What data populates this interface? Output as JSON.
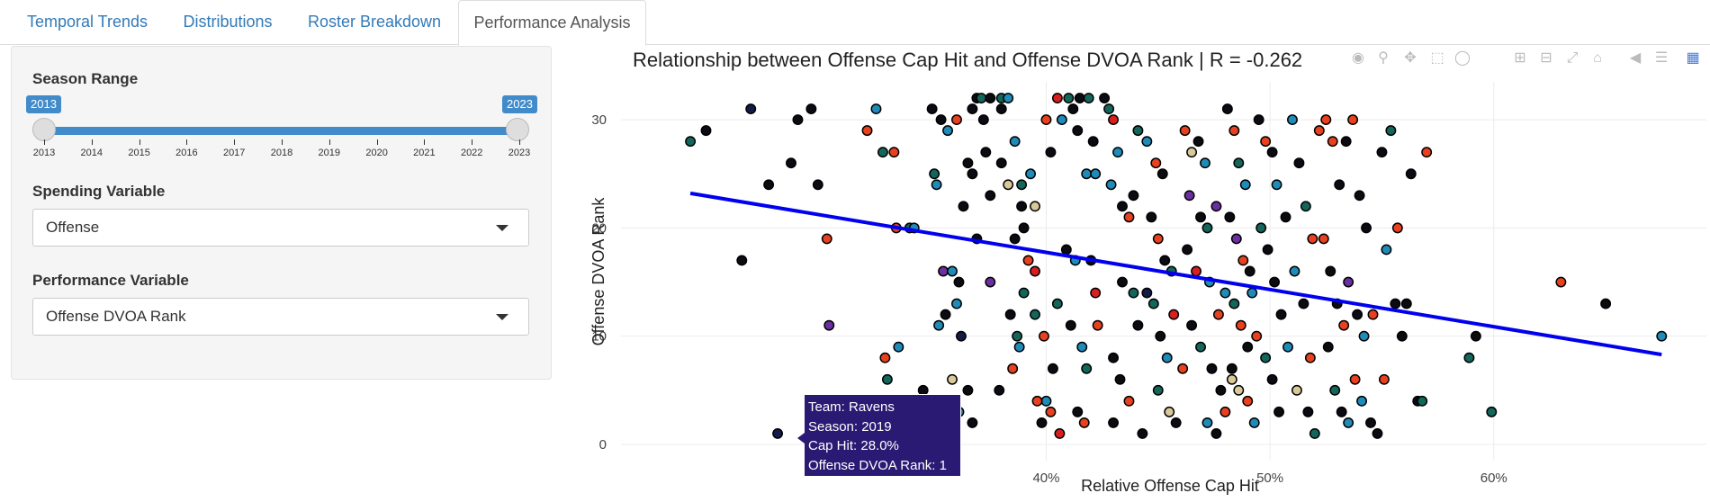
{
  "tabs": [
    {
      "label": "Temporal Trends",
      "active": false
    },
    {
      "label": "Distributions",
      "active": false
    },
    {
      "label": "Roster Breakdown",
      "active": false
    },
    {
      "label": "Performance Analysis",
      "active": true
    }
  ],
  "sidebar": {
    "season_range": {
      "label": "Season Range",
      "min_value": "2013",
      "max_value": "2023",
      "ticks": [
        "2013",
        "2014",
        "2015",
        "2016",
        "2017",
        "2018",
        "2019",
        "2020",
        "2021",
        "2022",
        "2023"
      ]
    },
    "spending": {
      "label": "Spending Variable",
      "value": "Offense"
    },
    "performance": {
      "label": "Performance Variable",
      "value": "Offense DVOA Rank"
    }
  },
  "modebar_icons": [
    "camera-icon",
    "zoom-icon",
    "pan-icon",
    "box-select-icon",
    "lasso-select-icon",
    "zoom-in-icon",
    "zoom-out-icon",
    "autoscale-icon",
    "reset-axes-icon",
    "spike-lines-icon",
    "compare-hover-icon",
    "plotly-logo-icon"
  ],
  "tooltip": {
    "team": "Team: Ravens",
    "season": "Season: 2019",
    "cap_hit": "Cap Hit: 28.0%",
    "rank": "Offense DVOA Rank: 1"
  },
  "colors": {
    "accent": "#428bca",
    "regression": "#0000ee",
    "point_palette": [
      "#0b0b12",
      "#1f8bb8",
      "#e8411f",
      "#13665a",
      "#6b2fa0",
      "#d9c89a",
      "#d62020",
      "#141b46"
    ]
  },
  "chart_data": {
    "type": "scatter",
    "title": "Relationship between Offense Cap Hit and Offense DVOA Rank | R = -0.262",
    "xlabel": "Relative Offense Cap Hit",
    "ylabel": "Offense DVOA Rank",
    "xlim": [
      21.0,
      69.5
    ],
    "ylim": [
      -1.5,
      33.5
    ],
    "x_ticks": [
      {
        "value": 40,
        "label": "40%"
      },
      {
        "value": 50,
        "label": "50%"
      },
      {
        "value": 60,
        "label": "60%"
      }
    ],
    "y_ticks": [
      0,
      10,
      20,
      30
    ],
    "grid": true,
    "regression_line": {
      "x": [
        24.1,
        67.5
      ],
      "y": [
        23.2,
        8.3
      ]
    },
    "points": [
      {
        "x": 24.1,
        "y": 28,
        "c": 3
      },
      {
        "x": 24.8,
        "y": 29,
        "c": 0
      },
      {
        "x": 26.4,
        "y": 17,
        "c": 0
      },
      {
        "x": 26.8,
        "y": 31,
        "c": 7
      },
      {
        "x": 27.6,
        "y": 24,
        "c": 0
      },
      {
        "x": 28.6,
        "y": 26,
        "c": 0
      },
      {
        "x": 28.9,
        "y": 30,
        "c": 0
      },
      {
        "x": 29.5,
        "y": 31,
        "c": 0
      },
      {
        "x": 29.8,
        "y": 24,
        "c": 0
      },
      {
        "x": 30.2,
        "y": 19,
        "c": 2
      },
      {
        "x": 30.3,
        "y": 11,
        "c": 4
      },
      {
        "x": 28.0,
        "y": 1,
        "c": 7
      },
      {
        "x": 32.0,
        "y": 29,
        "c": 2
      },
      {
        "x": 32.4,
        "y": 31,
        "c": 1
      },
      {
        "x": 32.7,
        "y": 27,
        "c": 3
      },
      {
        "x": 33.2,
        "y": 27,
        "c": 2
      },
      {
        "x": 32.8,
        "y": 8,
        "c": 2
      },
      {
        "x": 32.9,
        "y": 6,
        "c": 3
      },
      {
        "x": 33.4,
        "y": 9,
        "c": 1
      },
      {
        "x": 33.3,
        "y": 20,
        "c": 2
      },
      {
        "x": 33.9,
        "y": 20,
        "c": 3
      },
      {
        "x": 34.1,
        "y": 20,
        "c": 1
      },
      {
        "x": 34.0,
        "y": 4,
        "c": 2
      },
      {
        "x": 34.5,
        "y": 5,
        "c": 0
      },
      {
        "x": 34.9,
        "y": 31,
        "c": 0
      },
      {
        "x": 35.0,
        "y": 25,
        "c": 3
      },
      {
        "x": 35.3,
        "y": 30,
        "c": 0
      },
      {
        "x": 35.6,
        "y": 29,
        "c": 1
      },
      {
        "x": 36.0,
        "y": 30,
        "c": 2
      },
      {
        "x": 35.1,
        "y": 24,
        "c": 1
      },
      {
        "x": 35.4,
        "y": 16,
        "c": 4
      },
      {
        "x": 35.8,
        "y": 16,
        "c": 1
      },
      {
        "x": 36.5,
        "y": 26,
        "c": 0
      },
      {
        "x": 36.3,
        "y": 22,
        "c": 0
      },
      {
        "x": 36.7,
        "y": 25,
        "c": 0
      },
      {
        "x": 36.9,
        "y": 19,
        "c": 0
      },
      {
        "x": 35.5,
        "y": 12,
        "c": 0
      },
      {
        "x": 35.8,
        "y": 6,
        "c": 5
      },
      {
        "x": 36.0,
        "y": 13,
        "c": 1
      },
      {
        "x": 36.5,
        "y": 5,
        "c": 0
      },
      {
        "x": 35.2,
        "y": 11,
        "c": 1
      },
      {
        "x": 36.2,
        "y": 10,
        "c": 7
      },
      {
        "x": 36.1,
        "y": 3,
        "c": 1
      },
      {
        "x": 36.1,
        "y": 15,
        "c": 0
      },
      {
        "x": 36.7,
        "y": 31,
        "c": 0
      },
      {
        "x": 36.9,
        "y": 32,
        "c": 0
      },
      {
        "x": 37.2,
        "y": 30,
        "c": 0
      },
      {
        "x": 37.3,
        "y": 27,
        "c": 0
      },
      {
        "x": 37.5,
        "y": 23,
        "c": 0
      },
      {
        "x": 37.5,
        "y": 15,
        "c": 4
      },
      {
        "x": 37.9,
        "y": 5,
        "c": 0
      },
      {
        "x": 36.7,
        "y": 2,
        "c": 0
      },
      {
        "x": 38.0,
        "y": 31,
        "c": 0
      },
      {
        "x": 38.0,
        "y": 26,
        "c": 0
      },
      {
        "x": 38.3,
        "y": 24,
        "c": 5
      },
      {
        "x": 38.6,
        "y": 19,
        "c": 0
      },
      {
        "x": 38.9,
        "y": 22,
        "c": 0
      },
      {
        "x": 39.2,
        "y": 17,
        "c": 2
      },
      {
        "x": 39.5,
        "y": 12,
        "c": 3
      },
      {
        "x": 39.9,
        "y": 10,
        "c": 2
      },
      {
        "x": 40.5,
        "y": 13,
        "c": 3
      },
      {
        "x": 40.3,
        "y": 7,
        "c": 0
      },
      {
        "x": 40.0,
        "y": 4,
        "c": 1
      },
      {
        "x": 39.8,
        "y": 2,
        "c": 0
      },
      {
        "x": 37.1,
        "y": 32,
        "c": 3
      },
      {
        "x": 37.5,
        "y": 32,
        "c": 0
      },
      {
        "x": 38.0,
        "y": 32,
        "c": 3
      },
      {
        "x": 38.3,
        "y": 32,
        "c": 1
      },
      {
        "x": 38.6,
        "y": 28,
        "c": 1
      },
      {
        "x": 38.9,
        "y": 24,
        "c": 3
      },
      {
        "x": 39.3,
        "y": 25,
        "c": 1
      },
      {
        "x": 39.5,
        "y": 22,
        "c": 5
      },
      {
        "x": 39.0,
        "y": 20,
        "c": 0
      },
      {
        "x": 39.5,
        "y": 16,
        "c": 6
      },
      {
        "x": 39.0,
        "y": 14,
        "c": 3
      },
      {
        "x": 38.8,
        "y": 9,
        "c": 1
      },
      {
        "x": 38.5,
        "y": 7,
        "c": 2
      },
      {
        "x": 38.7,
        "y": 10,
        "c": 3
      },
      {
        "x": 39.6,
        "y": 4,
        "c": 2
      },
      {
        "x": 38.4,
        "y": 12,
        "c": 0
      },
      {
        "x": 40.0,
        "y": 30,
        "c": 2
      },
      {
        "x": 40.2,
        "y": 27,
        "c": 0
      },
      {
        "x": 40.5,
        "y": 32,
        "c": 6
      },
      {
        "x": 40.7,
        "y": 30,
        "c": 1
      },
      {
        "x": 41.0,
        "y": 32,
        "c": 3
      },
      {
        "x": 41.2,
        "y": 31,
        "c": 0
      },
      {
        "x": 41.5,
        "y": 32,
        "c": 0
      },
      {
        "x": 41.9,
        "y": 32,
        "c": 3
      },
      {
        "x": 41.4,
        "y": 29,
        "c": 0
      },
      {
        "x": 41.8,
        "y": 25,
        "c": 1
      },
      {
        "x": 42.1,
        "y": 28,
        "c": 0
      },
      {
        "x": 42.2,
        "y": 25,
        "c": 1
      },
      {
        "x": 40.9,
        "y": 18,
        "c": 0
      },
      {
        "x": 41.3,
        "y": 17,
        "c": 1
      },
      {
        "x": 42.0,
        "y": 17,
        "c": 0
      },
      {
        "x": 42.2,
        "y": 14,
        "c": 6
      },
      {
        "x": 41.1,
        "y": 11,
        "c": 0
      },
      {
        "x": 41.6,
        "y": 9,
        "c": 1
      },
      {
        "x": 42.3,
        "y": 11,
        "c": 2
      },
      {
        "x": 41.8,
        "y": 7,
        "c": 3
      },
      {
        "x": 41.4,
        "y": 3,
        "c": 0
      },
      {
        "x": 41.7,
        "y": 2,
        "c": 2
      },
      {
        "x": 40.6,
        "y": 1,
        "c": 6
      },
      {
        "x": 40.2,
        "y": 3,
        "c": 2
      },
      {
        "x": 42.6,
        "y": 32,
        "c": 0
      },
      {
        "x": 42.8,
        "y": 31,
        "c": 3
      },
      {
        "x": 43.0,
        "y": 30,
        "c": 6
      },
      {
        "x": 43.2,
        "y": 27,
        "c": 1
      },
      {
        "x": 42.9,
        "y": 24,
        "c": 1
      },
      {
        "x": 43.4,
        "y": 22,
        "c": 0
      },
      {
        "x": 43.7,
        "y": 21,
        "c": 2
      },
      {
        "x": 43.9,
        "y": 23,
        "c": 0
      },
      {
        "x": 43.4,
        "y": 15,
        "c": 0
      },
      {
        "x": 43.9,
        "y": 14,
        "c": 3
      },
      {
        "x": 44.1,
        "y": 11,
        "c": 0
      },
      {
        "x": 43.0,
        "y": 8,
        "c": 0
      },
      {
        "x": 43.3,
        "y": 6,
        "c": 0
      },
      {
        "x": 43.7,
        "y": 4,
        "c": 2
      },
      {
        "x": 43.0,
        "y": 2,
        "c": 0
      },
      {
        "x": 44.3,
        "y": 1,
        "c": 0
      },
      {
        "x": 44.1,
        "y": 29,
        "c": 3
      },
      {
        "x": 44.5,
        "y": 28,
        "c": 1
      },
      {
        "x": 44.9,
        "y": 26,
        "c": 2
      },
      {
        "x": 45.2,
        "y": 25,
        "c": 0
      },
      {
        "x": 44.7,
        "y": 21,
        "c": 0
      },
      {
        "x": 45.0,
        "y": 19,
        "c": 2
      },
      {
        "x": 45.3,
        "y": 17,
        "c": 0
      },
      {
        "x": 45.6,
        "y": 16,
        "c": 3
      },
      {
        "x": 44.5,
        "y": 14,
        "c": 7
      },
      {
        "x": 44.8,
        "y": 13,
        "c": 3
      },
      {
        "x": 45.1,
        "y": 10,
        "c": 0
      },
      {
        "x": 45.4,
        "y": 8,
        "c": 1
      },
      {
        "x": 45.0,
        "y": 5,
        "c": 3
      },
      {
        "x": 45.5,
        "y": 3,
        "c": 5
      },
      {
        "x": 45.8,
        "y": 2,
        "c": 0
      },
      {
        "x": 46.1,
        "y": 7,
        "c": 2
      },
      {
        "x": 46.2,
        "y": 29,
        "c": 2
      },
      {
        "x": 46.5,
        "y": 27,
        "c": 5
      },
      {
        "x": 46.8,
        "y": 28,
        "c": 0
      },
      {
        "x": 47.1,
        "y": 26,
        "c": 1
      },
      {
        "x": 46.4,
        "y": 23,
        "c": 4
      },
      {
        "x": 46.9,
        "y": 21,
        "c": 0
      },
      {
        "x": 47.2,
        "y": 20,
        "c": 3
      },
      {
        "x": 47.6,
        "y": 22,
        "c": 4
      },
      {
        "x": 46.3,
        "y": 18,
        "c": 0
      },
      {
        "x": 46.7,
        "y": 16,
        "c": 6
      },
      {
        "x": 47.3,
        "y": 15,
        "c": 1
      },
      {
        "x": 47.7,
        "y": 12,
        "c": 2
      },
      {
        "x": 46.5,
        "y": 11,
        "c": 0
      },
      {
        "x": 46.9,
        "y": 9,
        "c": 3
      },
      {
        "x": 47.4,
        "y": 7,
        "c": 0
      },
      {
        "x": 47.8,
        "y": 5,
        "c": 0
      },
      {
        "x": 47.2,
        "y": 2,
        "c": 1
      },
      {
        "x": 47.6,
        "y": 1,
        "c": 0
      },
      {
        "x": 48.0,
        "y": 3,
        "c": 2
      },
      {
        "x": 48.3,
        "y": 6,
        "c": 5
      },
      {
        "x": 48.1,
        "y": 31,
        "c": 0
      },
      {
        "x": 48.4,
        "y": 29,
        "c": 2
      },
      {
        "x": 48.6,
        "y": 26,
        "c": 3
      },
      {
        "x": 48.9,
        "y": 24,
        "c": 1
      },
      {
        "x": 48.2,
        "y": 21,
        "c": 0
      },
      {
        "x": 48.5,
        "y": 19,
        "c": 4
      },
      {
        "x": 48.8,
        "y": 17,
        "c": 2
      },
      {
        "x": 49.1,
        "y": 16,
        "c": 0
      },
      {
        "x": 48.0,
        "y": 14,
        "c": 1
      },
      {
        "x": 48.4,
        "y": 13,
        "c": 3
      },
      {
        "x": 48.7,
        "y": 11,
        "c": 2
      },
      {
        "x": 49.0,
        "y": 9,
        "c": 0
      },
      {
        "x": 48.3,
        "y": 7,
        "c": 0
      },
      {
        "x": 48.6,
        "y": 5,
        "c": 5
      },
      {
        "x": 49.0,
        "y": 4,
        "c": 2
      },
      {
        "x": 49.3,
        "y": 2,
        "c": 1
      },
      {
        "x": 49.5,
        "y": 30,
        "c": 0
      },
      {
        "x": 49.8,
        "y": 28,
        "c": 2
      },
      {
        "x": 50.1,
        "y": 27,
        "c": 0
      },
      {
        "x": 50.3,
        "y": 24,
        "c": 1
      },
      {
        "x": 49.6,
        "y": 20,
        "c": 3
      },
      {
        "x": 49.9,
        "y": 18,
        "c": 0
      },
      {
        "x": 50.2,
        "y": 15,
        "c": 0
      },
      {
        "x": 50.5,
        "y": 12,
        "c": 0
      },
      {
        "x": 49.4,
        "y": 10,
        "c": 2
      },
      {
        "x": 49.8,
        "y": 8,
        "c": 3
      },
      {
        "x": 50.1,
        "y": 6,
        "c": 0
      },
      {
        "x": 50.4,
        "y": 3,
        "c": 0
      },
      {
        "x": 51.0,
        "y": 30,
        "c": 1
      },
      {
        "x": 51.3,
        "y": 26,
        "c": 0
      },
      {
        "x": 51.6,
        "y": 22,
        "c": 3
      },
      {
        "x": 51.9,
        "y": 19,
        "c": 2
      },
      {
        "x": 50.7,
        "y": 21,
        "c": 0
      },
      {
        "x": 51.1,
        "y": 16,
        "c": 1
      },
      {
        "x": 51.5,
        "y": 13,
        "c": 0
      },
      {
        "x": 51.8,
        "y": 8,
        "c": 2
      },
      {
        "x": 50.8,
        "y": 9,
        "c": 1
      },
      {
        "x": 51.2,
        "y": 5,
        "c": 5
      },
      {
        "x": 51.7,
        "y": 3,
        "c": 0
      },
      {
        "x": 52.0,
        "y": 1,
        "c": 3
      },
      {
        "x": 52.2,
        "y": 29,
        "c": 2
      },
      {
        "x": 52.5,
        "y": 30,
        "c": 2
      },
      {
        "x": 52.8,
        "y": 28,
        "c": 2
      },
      {
        "x": 53.1,
        "y": 24,
        "c": 0
      },
      {
        "x": 52.4,
        "y": 19,
        "c": 2
      },
      {
        "x": 52.7,
        "y": 16,
        "c": 0
      },
      {
        "x": 53.0,
        "y": 13,
        "c": 0
      },
      {
        "x": 53.3,
        "y": 11,
        "c": 2
      },
      {
        "x": 52.6,
        "y": 9,
        "c": 0
      },
      {
        "x": 52.9,
        "y": 5,
        "c": 3
      },
      {
        "x": 53.2,
        "y": 3,
        "c": 0
      },
      {
        "x": 53.5,
        "y": 2,
        "c": 1
      },
      {
        "x": 53.4,
        "y": 28,
        "c": 0
      },
      {
        "x": 53.7,
        "y": 30,
        "c": 2
      },
      {
        "x": 54.0,
        "y": 23,
        "c": 0
      },
      {
        "x": 54.3,
        "y": 20,
        "c": 0
      },
      {
        "x": 53.5,
        "y": 15,
        "c": 4
      },
      {
        "x": 53.9,
        "y": 12,
        "c": 0
      },
      {
        "x": 54.2,
        "y": 10,
        "c": 1
      },
      {
        "x": 54.6,
        "y": 12,
        "c": 2
      },
      {
        "x": 53.8,
        "y": 6,
        "c": 2
      },
      {
        "x": 54.1,
        "y": 4,
        "c": 1
      },
      {
        "x": 54.5,
        "y": 2,
        "c": 0
      },
      {
        "x": 54.8,
        "y": 1,
        "c": 0
      },
      {
        "x": 55.0,
        "y": 27,
        "c": 0
      },
      {
        "x": 55.4,
        "y": 29,
        "c": 3
      },
      {
        "x": 55.7,
        "y": 20,
        "c": 2
      },
      {
        "x": 55.2,
        "y": 18,
        "c": 1
      },
      {
        "x": 55.6,
        "y": 13,
        "c": 0
      },
      {
        "x": 55.9,
        "y": 10,
        "c": 0
      },
      {
        "x": 56.3,
        "y": 25,
        "c": 0
      },
      {
        "x": 56.6,
        "y": 4,
        "c": 0
      },
      {
        "x": 56.8,
        "y": 4,
        "c": 3
      },
      {
        "x": 57.0,
        "y": 27,
        "c": 2
      },
      {
        "x": 58.9,
        "y": 8,
        "c": 3
      },
      {
        "x": 59.9,
        "y": 3,
        "c": 3
      },
      {
        "x": 59.2,
        "y": 10,
        "c": 0
      },
      {
        "x": 63.0,
        "y": 15,
        "c": 2
      },
      {
        "x": 65.0,
        "y": 13,
        "c": 0
      },
      {
        "x": 67.5,
        "y": 10,
        "c": 1
      },
      {
        "x": 55.1,
        "y": 6,
        "c": 2
      },
      {
        "x": 56.1,
        "y": 13,
        "c": 0
      },
      {
        "x": 49.2,
        "y": 14,
        "c": 1
      },
      {
        "x": 45.7,
        "y": 12,
        "c": 6
      }
    ]
  }
}
